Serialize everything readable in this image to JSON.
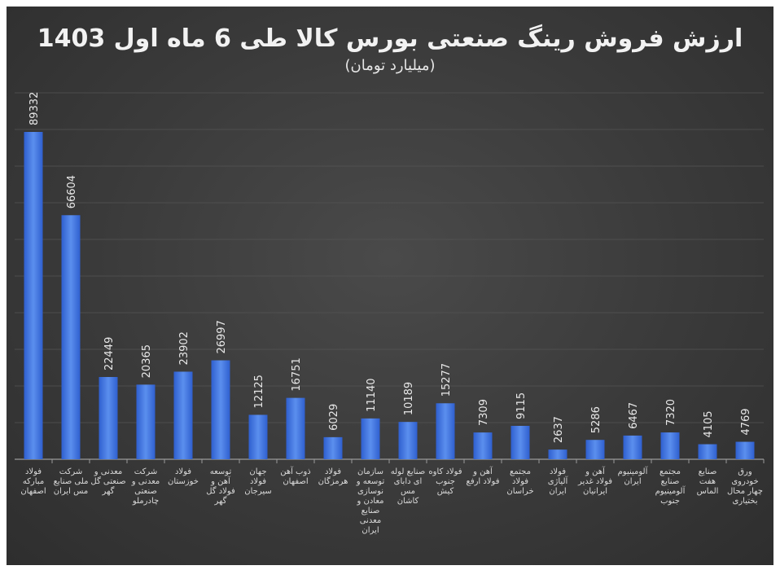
{
  "chart_data": {
    "type": "bar",
    "title": "ارزش فروش رینگ صنعتی بورس کالا طی 6 ماه اول 1403",
    "subtitle": "(میلیارد تومان)",
    "categories": [
      "فولاد مبارکه اصفهان",
      "شرکت ملی صنایع مس ایران",
      "معدنی و صنعتی گل گهر",
      "شرکت معدنی و صنعتی چادرملو",
      "فولاد خوزستان",
      "توسعه آهن و فولاد گل گهر",
      "جهان فولاد سیرجان",
      "ذوب آهن اصفهان",
      "فولاد هرمزگان",
      "سازمان توسعه و نوسازی معادن و صنایع معدنی ایران",
      "صنایع لوله ای دابای مس کاشان",
      "فولاد کاوه جنوب کیش",
      "آهن و فولاد ارفع",
      "مجتمع فولاد خراسان",
      "فولاد آلیاژی ایران",
      "آهن و فولاد غدیر ایرانیان",
      "آلومینیوم ایران",
      "مجتمع صنایع آلومینیوم جنوب",
      "صنایع هفت الماس",
      "ورق خودروی چهار محال بختیاری"
    ],
    "values": [
      89332,
      66604,
      22449,
      20365,
      23902,
      26997,
      12125,
      16751,
      6029,
      11140,
      10189,
      15277,
      7309,
      9115,
      2637,
      5286,
      6467,
      7320,
      4105,
      4769
    ],
    "ylim": [
      0,
      100000
    ],
    "grid": true,
    "colors": {
      "bar_top": "#5b8fee",
      "bar_bottom": "#2f5fcf",
      "background": "#3c3c3c",
      "text": "#e8e8e8"
    }
  }
}
